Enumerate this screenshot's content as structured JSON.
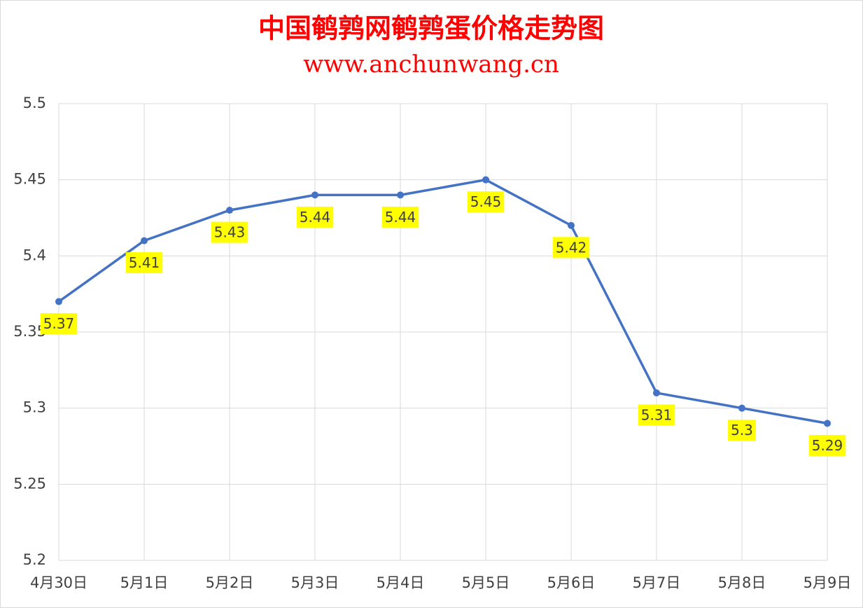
{
  "chart_data": {
    "type": "line",
    "title": "中国鹌鹑网鹌鹑蛋价格走势图",
    "subtitle": "www.anchunwang.cn",
    "categories": [
      "4月30日",
      "5月1日",
      "5月2日",
      "5月3日",
      "5月4日",
      "5月5日",
      "5月6日",
      "5月7日",
      "5月8日",
      "5月9日"
    ],
    "values": [
      5.37,
      5.41,
      5.43,
      5.44,
      5.44,
      5.45,
      5.42,
      5.31,
      5.3,
      5.29
    ],
    "color": "#4472c4",
    "label_background": "#ffff00",
    "ylim": [
      5.2,
      5.5
    ],
    "yticks": [
      5.2,
      5.25,
      5.3,
      5.35,
      5.4,
      5.45,
      5.5
    ],
    "grid": true
  }
}
